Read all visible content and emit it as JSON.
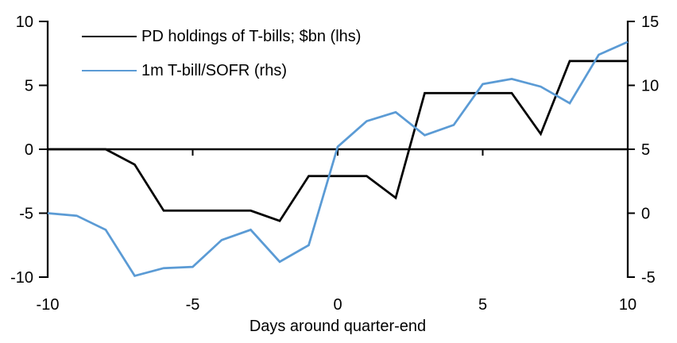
{
  "chart_data": {
    "type": "line",
    "title": "",
    "xlabel": "Days around quarter-end",
    "x": [
      -10,
      -9,
      -8,
      -7,
      -6,
      -5,
      -4,
      -3,
      -2,
      -1,
      0,
      1,
      2,
      3,
      4,
      5,
      6,
      7,
      8,
      9,
      10
    ],
    "x_ticks": [
      -10,
      -5,
      0,
      5,
      10
    ],
    "axes": {
      "left": {
        "range": [
          -10,
          10
        ],
        "ticks": [
          10,
          5,
          0,
          -5,
          -10
        ]
      },
      "right": {
        "range": [
          -5,
          15
        ],
        "ticks": [
          15,
          10,
          5,
          0,
          -5
        ]
      }
    },
    "series": [
      {
        "name": "PD holdings of T-bills; $bn (lhs)",
        "axis": "left",
        "color": "#000000",
        "values": [
          0,
          0,
          0,
          -1.2,
          -4.8,
          -4.8,
          -4.8,
          -4.8,
          -5.6,
          -2.1,
          -2.1,
          -2.1,
          -3.8,
          4.4,
          4.4,
          4.4,
          4.4,
          1.2,
          6.9,
          6.9,
          6.9
        ]
      },
      {
        "name": "1m T-bill/SOFR (rhs)",
        "axis": "right",
        "color": "#5B9BD5",
        "values": [
          0,
          -0.2,
          -1.3,
          -4.9,
          -4.3,
          -4.2,
          -2.1,
          -1.3,
          -3.8,
          -2.5,
          5.2,
          7.2,
          7.9,
          6.1,
          6.9,
          10.1,
          10.5,
          9.9,
          8.6,
          12.4,
          13.4
        ]
      }
    ],
    "legend_position": "top-left-inside",
    "grid": false,
    "background": "#ffffff",
    "axis_color": "#000000"
  }
}
